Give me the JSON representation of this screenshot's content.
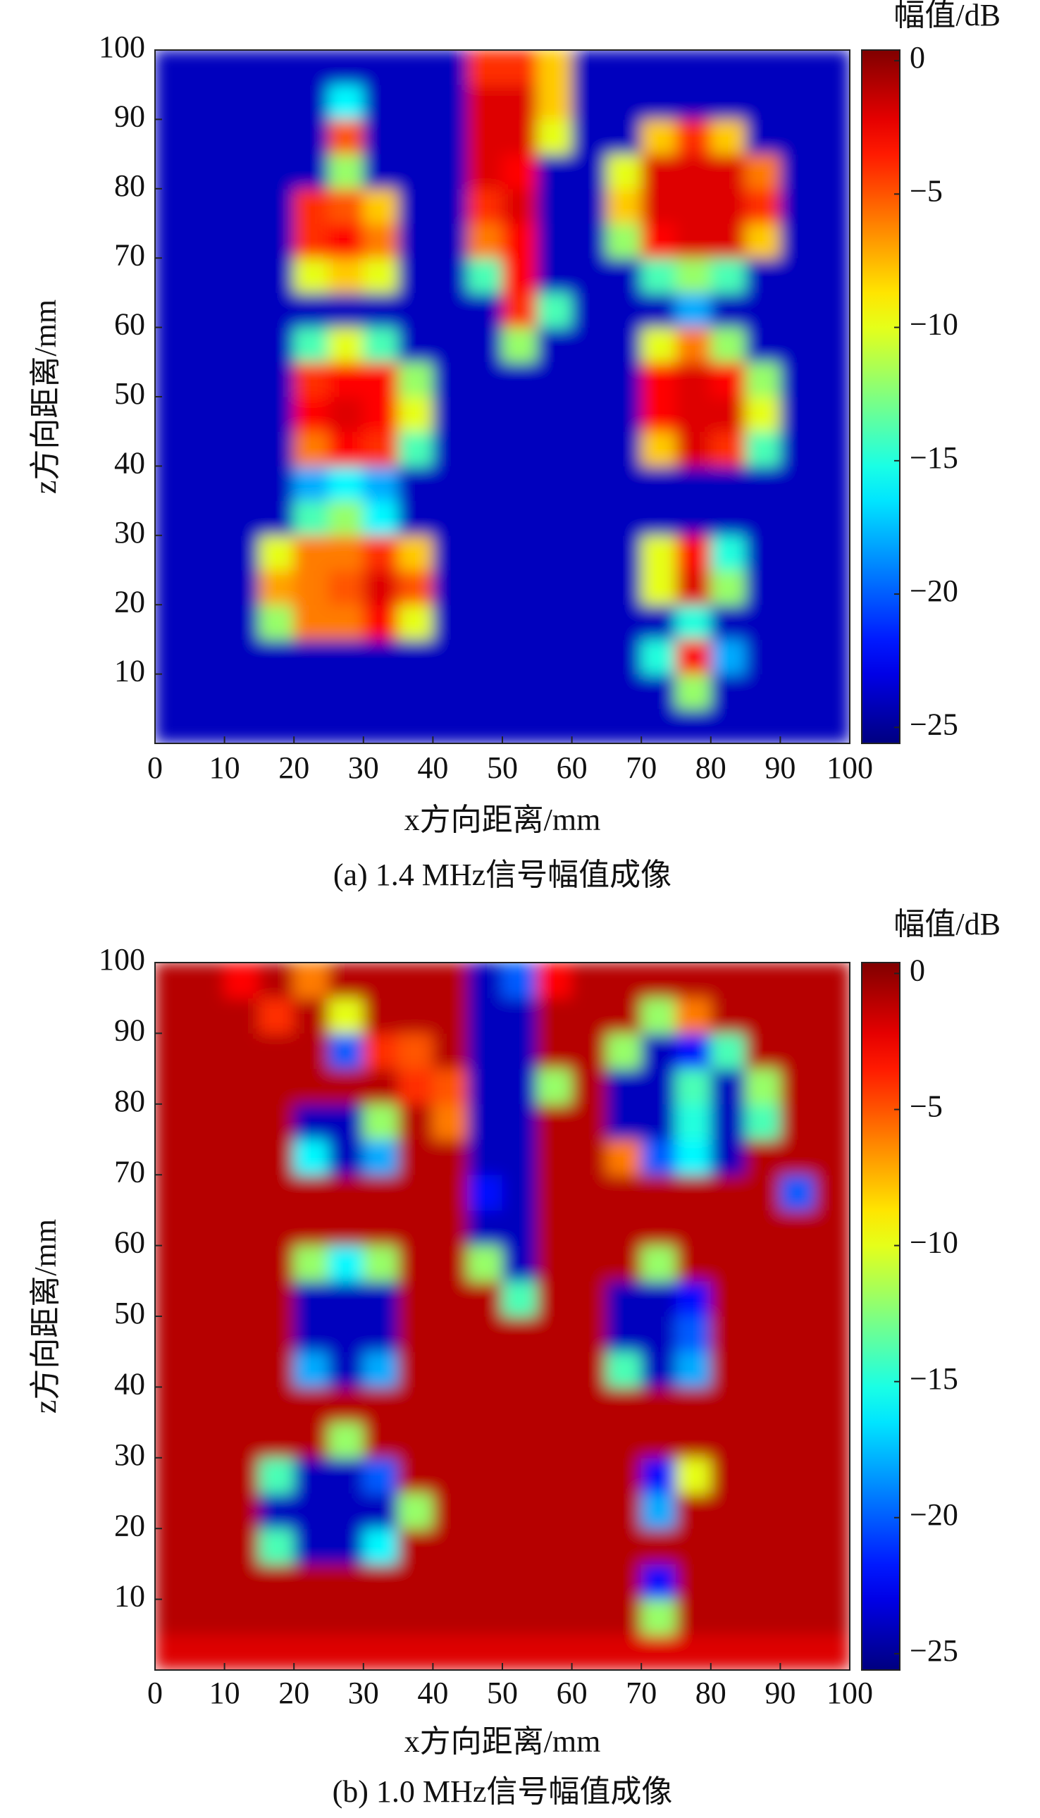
{
  "chart_data": [
    {
      "type": "heatmap",
      "colorscale": "jet",
      "colorbar_label": "幅值/dB",
      "x_label": "x方向距离/mm",
      "y_label": "z方向距离/mm",
      "caption": "(a) 1.4 MHz信号幅值成像",
      "xlim": [
        0,
        100
      ],
      "ylim": [
        0,
        100
      ],
      "xticks": [
        0,
        10,
        20,
        30,
        40,
        50,
        60,
        70,
        80,
        90,
        100
      ],
      "yticks": [
        10,
        20,
        30,
        40,
        50,
        60,
        70,
        80,
        90,
        100
      ],
      "clim": [
        -25.6,
        0.4
      ],
      "cticks": [
        0,
        {
          "value": -5,
          "label": "−5"
        },
        {
          "value": -10,
          "label": "−10"
        },
        {
          "value": -15,
          "label": "−15"
        },
        {
          "value": -20,
          "label": "−20"
        },
        {
          "value": -25,
          "label": "−25"
        }
      ],
      "x": [
        2.5,
        7.5,
        12.5,
        17.5,
        22.5,
        27.5,
        32.5,
        37.5,
        42.5,
        47.5,
        52.5,
        57.5,
        62.5,
        67.5,
        72.5,
        77.5,
        82.5,
        87.5,
        92.5,
        97.5
      ],
      "y": [
        2.5,
        7.5,
        12.5,
        17.5,
        22.5,
        27.5,
        32.5,
        37.5,
        42.5,
        47.5,
        52.5,
        57.5,
        62.5,
        67.5,
        72.5,
        77.5,
        82.5,
        87.5,
        92.5,
        97.5
      ],
      "values": [
        [
          -24,
          -24,
          -24,
          -24,
          -24,
          -24,
          -24,
          -24,
          -24,
          -24,
          -24,
          -24,
          -24,
          -24,
          -24,
          -24,
          -24,
          -24,
          -24,
          -24
        ],
        [
          -24,
          -24,
          -24,
          -24,
          -24,
          -24,
          -24,
          -24,
          -24,
          -24,
          -24,
          -24,
          -24,
          -24,
          -24,
          -12,
          -24,
          -24,
          -24,
          -24
        ],
        [
          -24,
          -24,
          -24,
          -24,
          -24,
          -24,
          -24,
          -24,
          -24,
          -24,
          -24,
          -24,
          -24,
          -24,
          -15,
          -3,
          -18,
          -24,
          -24,
          -24
        ],
        [
          -24,
          -24,
          -24,
          -12,
          -6,
          -6,
          -3,
          -10,
          -24,
          -24,
          -24,
          -24,
          -24,
          -24,
          -24,
          -15,
          -24,
          -24,
          -24,
          -24
        ],
        [
          -24,
          -24,
          -24,
          -7,
          -6,
          -5,
          -2,
          -5,
          -24,
          -24,
          -24,
          -24,
          -24,
          -24,
          -10,
          -2,
          -12,
          -24,
          -24,
          -24
        ],
        [
          -24,
          -24,
          -24,
          -10,
          -6,
          -6,
          -4,
          -8,
          -24,
          -24,
          -24,
          -24,
          -24,
          -24,
          -10,
          -3,
          -15,
          -24,
          -24,
          -24
        ],
        [
          -24,
          -24,
          -24,
          -24,
          -14,
          -12,
          -16,
          -24,
          -24,
          -24,
          -24,
          -24,
          -24,
          -24,
          -24,
          -24,
          -24,
          -24,
          -24,
          -24
        ],
        [
          -24,
          -24,
          -24,
          -24,
          -18,
          -16,
          -18,
          -24,
          -24,
          -24,
          -24,
          -24,
          -24,
          -24,
          -24,
          -24,
          -24,
          -24,
          -24,
          -24
        ],
        [
          -24,
          -24,
          -24,
          -24,
          -6,
          -3,
          -4,
          -14,
          -24,
          -24,
          -24,
          -24,
          -24,
          -24,
          -8,
          -2,
          -4,
          -14,
          -24,
          -24
        ],
        [
          -24,
          -24,
          -24,
          -24,
          -3,
          -2,
          -3,
          -10,
          -24,
          -24,
          -24,
          -24,
          -24,
          -24,
          -3,
          -2,
          -2,
          -10,
          -24,
          -24
        ],
        [
          -24,
          -24,
          -24,
          -24,
          -4,
          -3,
          -3,
          -12,
          -24,
          -24,
          -24,
          -24,
          -24,
          -24,
          -3,
          -2,
          -3,
          -12,
          -24,
          -24
        ],
        [
          -24,
          -24,
          -24,
          -24,
          -14,
          -10,
          -14,
          -24,
          -24,
          -24,
          -12,
          -24,
          -24,
          -24,
          -10,
          -6,
          -12,
          -24,
          -24,
          -24
        ],
        [
          -24,
          -24,
          -24,
          -24,
          -24,
          -24,
          -24,
          -24,
          -24,
          -24,
          -4,
          -14,
          -24,
          -24,
          -24,
          -18,
          -24,
          -24,
          -24,
          -24
        ],
        [
          -24,
          -24,
          -24,
          -24,
          -10,
          -8,
          -10,
          -24,
          -24,
          -14,
          -3,
          -24,
          -24,
          -24,
          -14,
          -12,
          -14,
          -24,
          -24,
          -24
        ],
        [
          -24,
          -24,
          -24,
          -24,
          -4,
          -3,
          -6,
          -24,
          -24,
          -6,
          -3,
          -24,
          -24,
          -12,
          -3,
          -2,
          -2,
          -8,
          -24,
          -24
        ],
        [
          -24,
          -24,
          -24,
          -24,
          -4,
          -5,
          -8,
          -24,
          -24,
          -4,
          -2,
          -24,
          -24,
          -8,
          -2,
          -2,
          -2,
          -4,
          -24,
          -24
        ],
        [
          -24,
          -24,
          -24,
          -24,
          -24,
          -12,
          -24,
          -24,
          -24,
          -2,
          -3,
          -24,
          -24,
          -10,
          -2,
          -2,
          -2,
          -6,
          -24,
          -24
        ],
        [
          -24,
          -24,
          -24,
          -24,
          -24,
          -5,
          -24,
          -24,
          -24,
          -2,
          -2,
          -10,
          -24,
          -24,
          -8,
          -4,
          -8,
          -24,
          -24,
          -24
        ],
        [
          -24,
          -24,
          -24,
          -24,
          -24,
          -16,
          -24,
          -24,
          -24,
          -2,
          -2,
          -8,
          -24,
          -24,
          -24,
          -24,
          -24,
          -24,
          -24,
          -24
        ],
        [
          -24,
          -24,
          -24,
          -24,
          -24,
          -24,
          -24,
          -24,
          -24,
          -4,
          -4,
          -8,
          -24,
          -24,
          -24,
          -24,
          -24,
          -24,
          -24,
          -24
        ]
      ]
    },
    {
      "type": "heatmap",
      "colorscale": "jet",
      "colorbar_label": "幅值/dB",
      "x_label": "x方向距离/mm",
      "y_label": "z方向距离/mm",
      "caption": "(b) 1.0 MHz信号幅值成像",
      "xlim": [
        0,
        100
      ],
      "ylim": [
        0,
        100
      ],
      "xticks": [
        0,
        10,
        20,
        30,
        40,
        50,
        60,
        70,
        80,
        90,
        100
      ],
      "yticks": [
        10,
        20,
        30,
        40,
        50,
        60,
        70,
        80,
        90,
        100
      ],
      "clim": [
        -25.6,
        0.4
      ],
      "cticks": [
        0,
        {
          "value": -5,
          "label": "−5"
        },
        {
          "value": -10,
          "label": "−10"
        },
        {
          "value": -15,
          "label": "−15"
        },
        {
          "value": -20,
          "label": "−20"
        },
        {
          "value": -25,
          "label": "−25"
        }
      ],
      "x": [
        2.5,
        7.5,
        12.5,
        17.5,
        22.5,
        27.5,
        32.5,
        37.5,
        42.5,
        47.5,
        52.5,
        57.5,
        62.5,
        67.5,
        72.5,
        77.5,
        82.5,
        87.5,
        92.5,
        97.5
      ],
      "y": [
        2.5,
        7.5,
        12.5,
        17.5,
        22.5,
        27.5,
        32.5,
        37.5,
        42.5,
        47.5,
        52.5,
        57.5,
        62.5,
        67.5,
        72.5,
        77.5,
        82.5,
        87.5,
        92.5,
        97.5
      ],
      "values": [
        [
          -2,
          -2,
          -2,
          -2,
          -2,
          -2,
          -2,
          -2,
          -2,
          -2,
          -2,
          -2,
          -2,
          -2,
          -2,
          -2,
          -2,
          -2,
          -2,
          -2
        ],
        [
          -1,
          -1,
          -1,
          -1,
          -1,
          -1,
          -1,
          -1,
          -1,
          -1,
          -1,
          -1,
          -1,
          -1,
          -12,
          -1,
          -1,
          -1,
          -1,
          -1
        ],
        [
          -1,
          -1,
          -1,
          -1,
          -1,
          -1,
          -1,
          -1,
          -1,
          -1,
          -1,
          -1,
          -1,
          -1,
          -22,
          -1,
          -1,
          -1,
          -1,
          -1
        ],
        [
          -1,
          -1,
          -1,
          -14,
          -24,
          -24,
          -16,
          -1,
          -1,
          -1,
          -1,
          -1,
          -1,
          -1,
          -1,
          -1,
          -1,
          -1,
          -1,
          -1
        ],
        [
          -1,
          -1,
          -1,
          -24,
          -24,
          -24,
          -24,
          -12,
          -1,
          -1,
          -1,
          -1,
          -1,
          -1,
          -18,
          -1,
          -1,
          -1,
          -1,
          -1
        ],
        [
          -1,
          -1,
          -1,
          -14,
          -24,
          -24,
          -20,
          -1,
          -1,
          -1,
          -1,
          -1,
          -1,
          -1,
          -22,
          -10,
          -1,
          -1,
          -1,
          -1
        ],
        [
          -1,
          -1,
          -1,
          -1,
          -1,
          -12,
          -1,
          -1,
          -1,
          -1,
          -1,
          -1,
          -1,
          -1,
          -1,
          -1,
          -1,
          -1,
          -1,
          -1
        ],
        [
          -1,
          -1,
          -1,
          -1,
          -1,
          -1,
          -1,
          -1,
          -1,
          -1,
          -1,
          -1,
          -1,
          -1,
          -1,
          -1,
          -1,
          -1,
          -1,
          -1
        ],
        [
          -1,
          -1,
          -1,
          -1,
          -18,
          -24,
          -18,
          -1,
          -1,
          -1,
          -1,
          -1,
          -1,
          -14,
          -24,
          -18,
          -1,
          -1,
          -1,
          -1
        ],
        [
          -1,
          -1,
          -1,
          -1,
          -24,
          -24,
          -24,
          -1,
          -1,
          -1,
          -1,
          -1,
          -1,
          -24,
          -24,
          -20,
          -1,
          -1,
          -1,
          -1
        ],
        [
          -1,
          -1,
          -1,
          -1,
          -24,
          -24,
          -24,
          -1,
          -1,
          -1,
          -14,
          -1,
          -1,
          -24,
          -24,
          -22,
          -1,
          -1,
          -1,
          -1
        ],
        [
          -1,
          -1,
          -1,
          -1,
          -12,
          -16,
          -12,
          -1,
          -1,
          -12,
          -24,
          -1,
          -1,
          -1,
          -12,
          -1,
          -1,
          -1,
          -1,
          -1
        ],
        [
          -1,
          -1,
          -1,
          -1,
          -1,
          -1,
          -1,
          -1,
          -1,
          -24,
          -24,
          -1,
          -1,
          -1,
          -1,
          -1,
          -1,
          -1,
          -1,
          -1
        ],
        [
          -1,
          -1,
          -1,
          -1,
          -1,
          -1,
          -1,
          -1,
          -1,
          -22,
          -24,
          -1,
          -1,
          -1,
          -1,
          -1,
          -1,
          -1,
          -20,
          -1
        ],
        [
          -1,
          -1,
          -1,
          -1,
          -16,
          -24,
          -18,
          -1,
          -1,
          -24,
          -24,
          -1,
          -1,
          -6,
          -20,
          -16,
          -24,
          -1,
          -1,
          -1
        ],
        [
          -1,
          -1,
          -1,
          -1,
          -24,
          -24,
          -12,
          -1,
          -6,
          -24,
          -24,
          -1,
          -1,
          -24,
          -24,
          -15,
          -24,
          -14,
          -1,
          -1
        ],
        [
          -1,
          -1,
          -1,
          -1,
          -1,
          -1,
          -1,
          -4,
          -5,
          -24,
          -24,
          -12,
          -1,
          -24,
          -24,
          -14,
          -24,
          -12,
          -1,
          -1
        ],
        [
          -1,
          -1,
          -1,
          -1,
          -1,
          -20,
          -4,
          -5,
          -1,
          -24,
          -24,
          -1,
          -1,
          -12,
          -24,
          -22,
          -14,
          -1,
          -1,
          -1
        ],
        [
          -1,
          -1,
          -1,
          -4,
          -1,
          -10,
          -1,
          -1,
          -1,
          -24,
          -24,
          -1,
          -1,
          -1,
          -12,
          -6,
          -1,
          -1,
          -1,
          -1
        ],
        [
          -1,
          -1,
          -3,
          -1,
          -6,
          -1,
          -1,
          -1,
          -1,
          -24,
          -20,
          -3,
          -1,
          -1,
          -1,
          -1,
          -1,
          -1,
          -1,
          -1
        ]
      ]
    }
  ]
}
